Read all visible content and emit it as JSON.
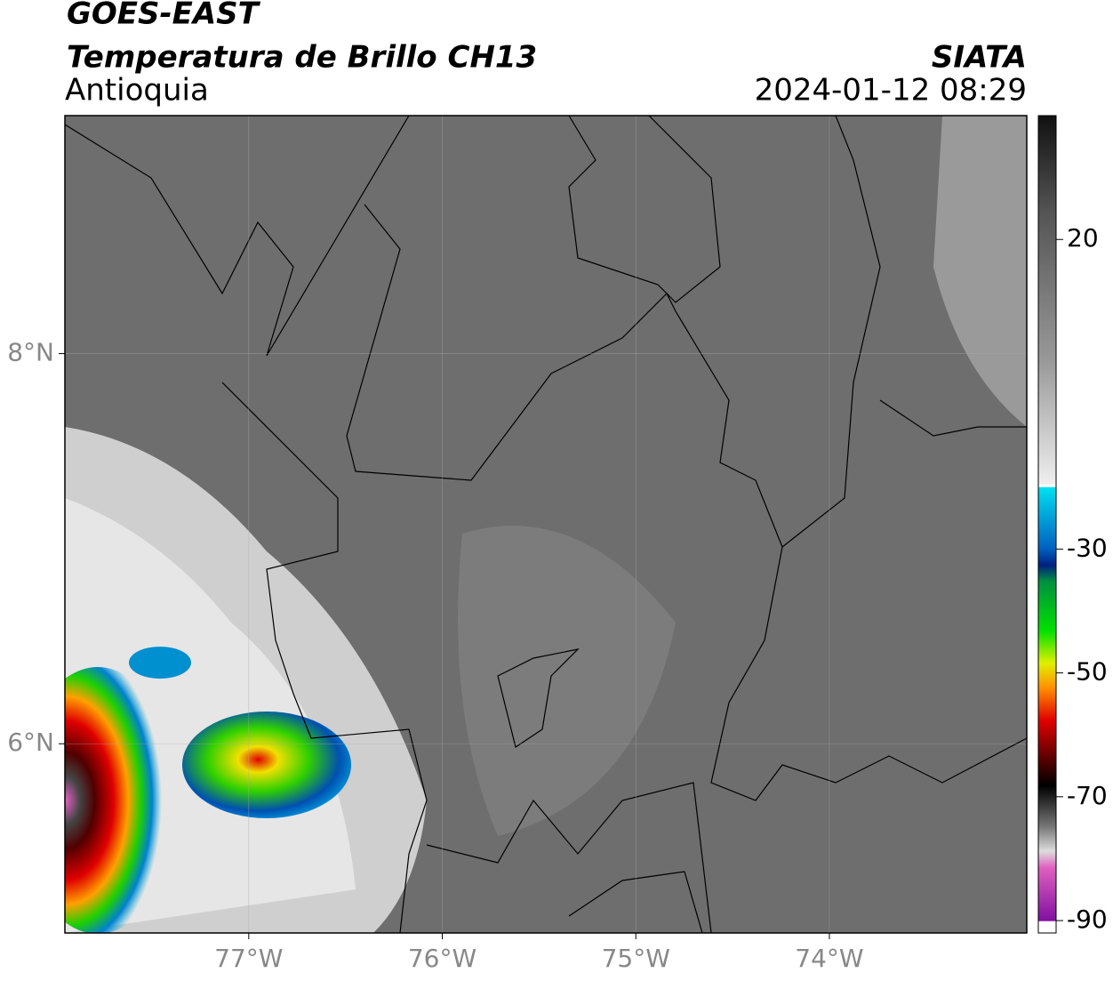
{
  "header": {
    "line1": "GOES-EAST",
    "line2": "Temperatura de Brillo CH13",
    "region": "Antioquia",
    "source": "SIATA",
    "datetime": "2024-01-12 08:29"
  },
  "map": {
    "lon_lim": [
      -77.95,
      -72.98
    ],
    "lat_lim": [
      5.03,
      9.22
    ],
    "lon_ticks": [
      {
        "value": -77,
        "label": "77°W"
      },
      {
        "value": -76,
        "label": "76°W"
      },
      {
        "value": -75,
        "label": "75°W"
      },
      {
        "value": -74,
        "label": "74°W"
      }
    ],
    "lat_ticks": [
      {
        "value": 8,
        "label": "8°N"
      },
      {
        "value": 6,
        "label": "6°N"
      }
    ],
    "grid": true
  },
  "colorbar": {
    "lim": [
      -92,
      40
    ],
    "ticks": [
      20,
      -30,
      -50,
      -70,
      -90
    ]
  }
}
